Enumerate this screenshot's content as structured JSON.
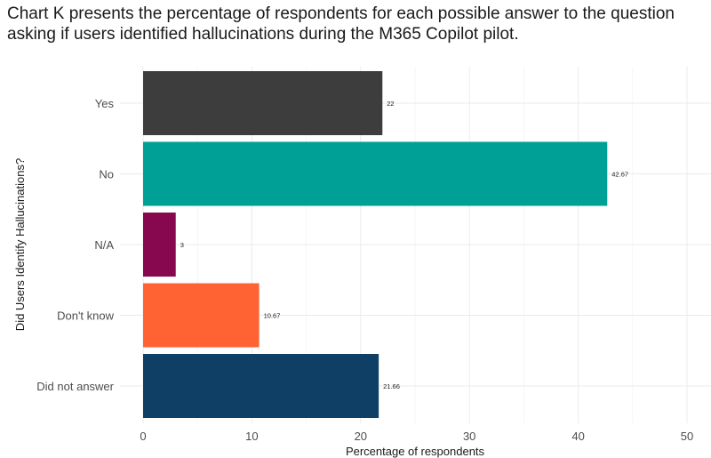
{
  "caption": "Chart K presents the percentage of respondents for each possible answer to the question asking if users identified hallucinations during the M365 Copilot pilot.",
  "chart_data": {
    "type": "bar",
    "orientation": "horizontal",
    "categories": [
      "Yes",
      "No",
      "N/A",
      "Don't know",
      "Did not answer"
    ],
    "values": [
      22,
      42.67,
      3,
      10.67,
      21.66
    ],
    "data_labels": [
      "22",
      "42.67",
      "3",
      "10.67",
      "21.66"
    ],
    "colors": [
      "#3d3d3d",
      "#00a096",
      "#87084f",
      "#ff6333",
      "#0f3f65"
    ],
    "title": "",
    "xlabel": "Percentage of respondents",
    "ylabel": "Did Users Identify Hallucinations?",
    "xlim": [
      0,
      50
    ],
    "xticks": [
      0,
      10,
      20,
      30,
      40,
      50
    ],
    "grid": true,
    "legend": "none"
  }
}
